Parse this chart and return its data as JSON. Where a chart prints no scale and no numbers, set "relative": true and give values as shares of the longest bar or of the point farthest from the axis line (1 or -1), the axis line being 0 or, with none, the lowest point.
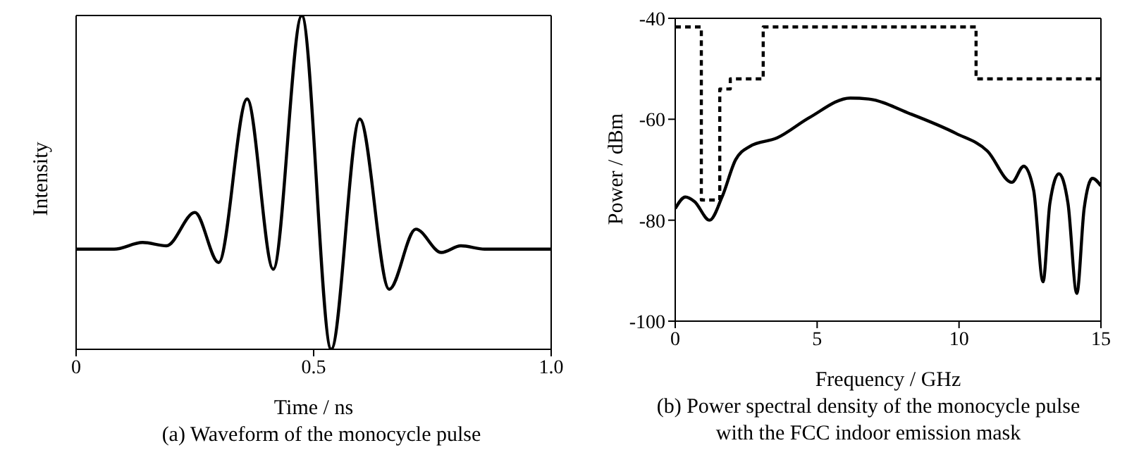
{
  "chart_data": [
    {
      "type": "line",
      "title": "(a)  Waveform of the monocycle pulse",
      "xlabel": "Time / ns",
      "ylabel": "Intensity",
      "relative": true,
      "xlim": [
        0,
        1
      ],
      "xticks": [
        0,
        0.5,
        {
          "value": 1,
          "label": "1.0"
        }
      ],
      "series": [
        {
          "color": "#000000",
          "x": [
            0,
            0.08,
            0.14,
            0.19,
            0.25,
            0.3,
            0.36,
            0.415,
            0.475,
            0.537,
            0.597,
            0.659,
            0.715,
            0.769,
            0.81,
            0.86,
            1
          ],
          "values": [
            0.3,
            0.3,
            0.32,
            0.31,
            0.41,
            0.26,
            0.75,
            0.24,
            1,
            0,
            0.69,
            0.18,
            0.36,
            0.29,
            0.31,
            0.3,
            0.3
          ]
        }
      ]
    },
    {
      "type": "line",
      "title": "(b)  Power spectral density of the monocycle pulse with the FCC indoor emission mask",
      "xlabel": "Frequency / GHz",
      "ylabel": "Power / dBm",
      "xlim": [
        0,
        15
      ],
      "xticks": [
        0,
        5,
        10,
        15
      ],
      "ylim": [
        -100,
        -40
      ],
      "yticks": [
        -100,
        -80,
        -60,
        -40
      ],
      "series": [
        {
          "color": "#000000",
          "line_style": "solid",
          "x": [
            0,
            0.36,
            0.68,
            1.21,
            1.65,
            2.13,
            2.62,
            3.59,
            4.72,
            6.17,
            6.82,
            8.27,
            9.89,
            11,
            11.86,
            12.28,
            12.63,
            12.96,
            13.2,
            13.52,
            13.84,
            14.15,
            14.41,
            14.7,
            15
          ],
          "values": [
            -77.7,
            -75.4,
            -76.3,
            -80,
            -75.4,
            -68,
            -65.4,
            -63.7,
            -59.7,
            -55.8,
            -56,
            -58.9,
            -62.8,
            -66.3,
            -72.5,
            -69.3,
            -74.1,
            -92.2,
            -76.7,
            -70.8,
            -76.7,
            -94.5,
            -77.6,
            -71.7,
            -73.2
          ]
        },
        {
          "type": "step",
          "color": "#000000",
          "line_style": "dashed",
          "x": [
            0,
            0.92,
            1.57,
            1.94,
            3.1,
            10.6,
            15
          ],
          "values": [
            -41.7,
            -76,
            -54,
            -52,
            -41.7,
            -52,
            -52
          ]
        }
      ]
    }
  ]
}
